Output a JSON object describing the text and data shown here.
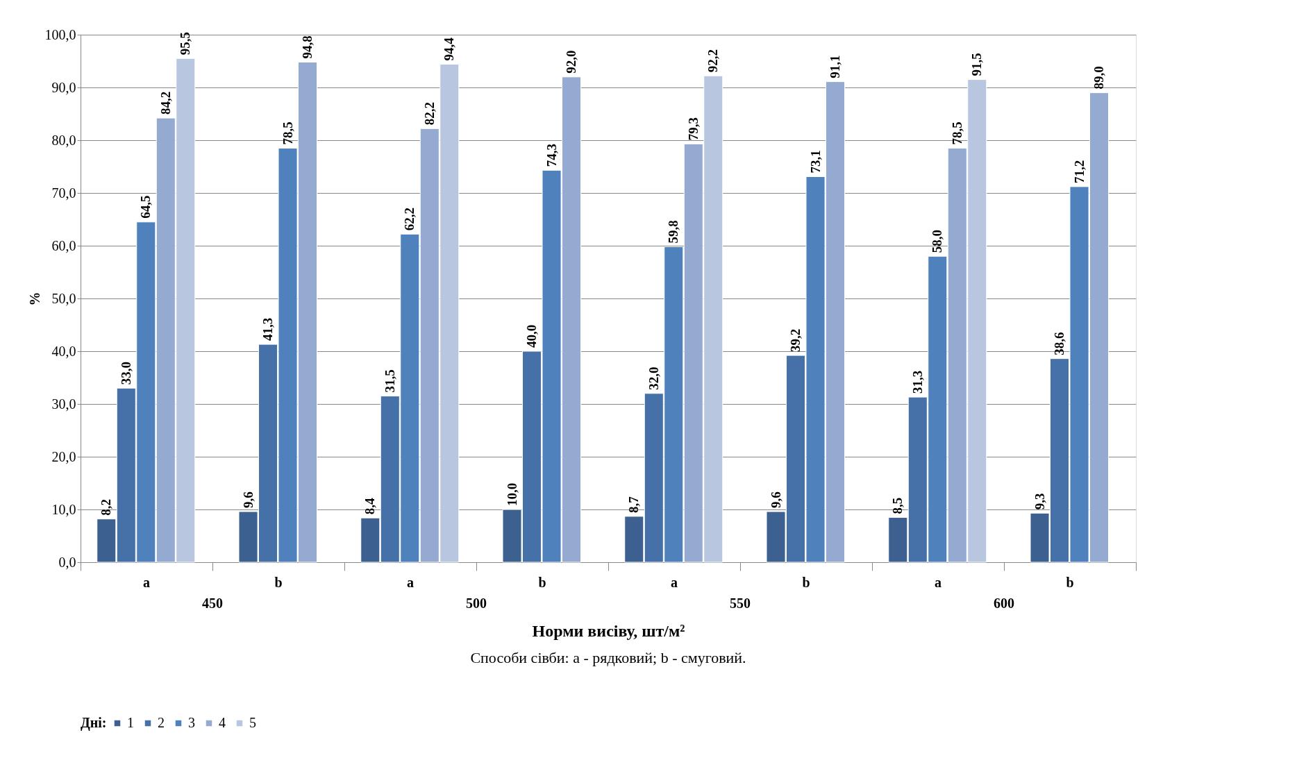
{
  "chart_data": {
    "type": "bar",
    "xlabel": "Норми висіву, шт/м²",
    "ylabel": "%",
    "legend_title": "Дні:",
    "categories": [
      "a",
      "b",
      "a",
      "b",
      "a",
      "b",
      "a",
      "b"
    ],
    "annotations": [
      "450",
      "500",
      "550",
      "600",
      "Способи сівби: а - рядковий; b - смуговий."
    ],
    "series": [
      {
        "name": "1",
        "color": "#3c6190",
        "values": [
          8.2,
          9.6,
          8.4,
          10.0,
          8.7,
          9.6,
          8.5,
          9.3
        ],
        "value_labels": [
          "8,2",
          "9,6",
          "8,4",
          "10,0",
          "8,7",
          "9,6",
          "8,5",
          "9,3"
        ]
      },
      {
        "name": "2",
        "color": "#4571a8",
        "values": [
          33.0,
          41.3,
          31.5,
          40.0,
          32.0,
          39.2,
          31.3,
          38.6
        ],
        "value_labels": [
          "33,0",
          "41,3",
          "31,5",
          "40,0",
          "32,0",
          "39,2",
          "31,3",
          "38,6"
        ]
      },
      {
        "name": "3",
        "color": "#4f81bd",
        "values": [
          64.5,
          78.5,
          62.2,
          74.3,
          59.8,
          73.1,
          58.0,
          71.2
        ],
        "value_labels": [
          "64,5",
          "78,5",
          "62,2",
          "74,3",
          "59,8",
          "73,1",
          "58,0",
          "71,2"
        ]
      },
      {
        "name": "4",
        "color": "#95aad1",
        "values": [
          84.2,
          94.8,
          82.2,
          92.0,
          79.3,
          91.1,
          78.5,
          89.0
        ],
        "value_labels": [
          "84,2",
          "94,8",
          "82,2",
          "92,0",
          "79,3",
          "91,1",
          "78,5",
          "89,0"
        ]
      },
      {
        "name": "5",
        "color": "#b9c6e0",
        "values": [
          95.5,
          null,
          94.4,
          null,
          92.2,
          null,
          91.5,
          null
        ],
        "value_labels": [
          "95,5",
          null,
          "94,4",
          null,
          "92,2",
          null,
          "91,5",
          null
        ]
      }
    ],
    "ylim": [
      0,
      100
    ],
    "yticks": [
      {
        "value": 0,
        "label": "0,0"
      },
      {
        "value": 10,
        "label": "10,0"
      },
      {
        "value": 20,
        "label": "20,0"
      },
      {
        "value": 30,
        "label": "30,0"
      },
      {
        "value": 40,
        "label": "40,0"
      },
      {
        "value": 50,
        "label": "50,0"
      },
      {
        "value": 60,
        "label": "60,0"
      },
      {
        "value": 70,
        "label": "70,0"
      },
      {
        "value": 80,
        "label": "80,0"
      },
      {
        "value": 90,
        "label": "90,0"
      },
      {
        "value": 100,
        "label": "100,0"
      }
    ],
    "grid": "y",
    "legend": "bottom"
  }
}
